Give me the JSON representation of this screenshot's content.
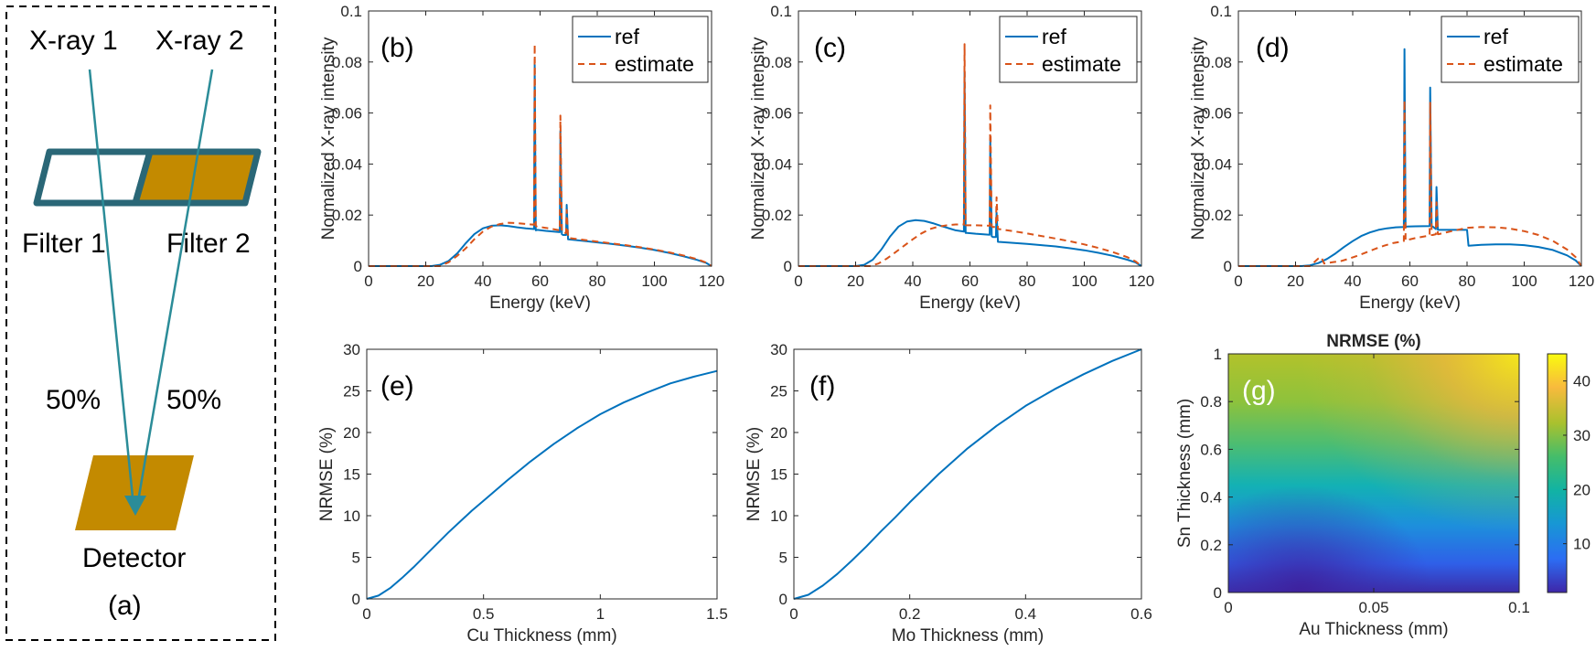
{
  "diagram": {
    "xray1_label": "X-ray 1",
    "xray2_label": "X-ray 2",
    "filter1_label": "Filter 1",
    "filter2_label": "Filter 2",
    "pct1_label": "50%",
    "pct2_label": "50%",
    "detector_label": "Detector",
    "panel_label": "(a)",
    "colors": {
      "beam": "#2b8c98",
      "filter_border": "#2a6777",
      "gold": "#c38a00"
    }
  },
  "colors": {
    "ref": "#0072BD",
    "estimate": "#D95319"
  },
  "chart_data": [
    {
      "id": "b",
      "type": "line",
      "panel_label": "(b)",
      "xlabel": "Energy (keV)",
      "ylabel": "Normalized X-ray intensity",
      "xlim": [
        0,
        120
      ],
      "ylim": [
        0,
        0.1
      ],
      "xticks": [
        "0",
        "20",
        "40",
        "60",
        "80",
        "100",
        "120"
      ],
      "yticks": [
        "0",
        "0.02",
        "0.04",
        "0.06",
        "0.08",
        "0.1"
      ],
      "legend": [
        "ref",
        "estimate"
      ],
      "legend_position": "top-right",
      "series": [
        {
          "name": "ref",
          "style": "solid",
          "x": [
            0,
            22,
            25,
            28,
            31,
            34,
            37,
            40,
            43,
            46,
            49,
            52,
            55,
            57.9,
            58.1,
            58.5,
            59,
            62,
            66.9,
            67.1,
            67.6,
            68,
            69.1,
            69.3,
            69.8,
            70,
            75,
            80,
            85,
            90,
            95,
            100,
            105,
            110,
            115,
            118,
            120
          ],
          "y": [
            0,
            0,
            0.0005,
            0.002,
            0.005,
            0.009,
            0.0125,
            0.0148,
            0.0158,
            0.016,
            0.0157,
            0.0152,
            0.0148,
            0.0145,
            0.079,
            0.014,
            0.0142,
            0.0138,
            0.0133,
            0.053,
            0.0125,
            0.0122,
            0.0122,
            0.024,
            0.0105,
            0.0105,
            0.0099,
            0.0093,
            0.0087,
            0.008,
            0.0072,
            0.0063,
            0.0052,
            0.0039,
            0.0024,
            0.0013,
            0
          ]
        },
        {
          "name": "estimate",
          "style": "dashed",
          "x": [
            0,
            25,
            28,
            31,
            34,
            37,
            40,
            43,
            46,
            49,
            52,
            55,
            57.9,
            58.1,
            58.5,
            59,
            62,
            66.9,
            67.1,
            67.6,
            68,
            69.1,
            69.3,
            69.8,
            70,
            75,
            80,
            85,
            90,
            95,
            100,
            105,
            110,
            115,
            118,
            120
          ],
          "y": [
            0,
            0,
            0.0015,
            0.004,
            0.007,
            0.0105,
            0.0135,
            0.0155,
            0.0165,
            0.017,
            0.0168,
            0.0165,
            0.0162,
            0.087,
            0.0157,
            0.0155,
            0.015,
            0.014,
            0.059,
            0.0133,
            0.013,
            0.013,
            0.022,
            0.011,
            0.011,
            0.0103,
            0.0096,
            0.0089,
            0.0082,
            0.0074,
            0.0065,
            0.0054,
            0.0042,
            0.0027,
            0.0014,
            0
          ]
        }
      ]
    },
    {
      "id": "c",
      "type": "line",
      "panel_label": "(c)",
      "xlabel": "Energy (keV)",
      "ylabel": "Normalized X-ray intensity",
      "xlim": [
        0,
        120
      ],
      "ylim": [
        0,
        0.1
      ],
      "xticks": [
        "0",
        "20",
        "40",
        "60",
        "80",
        "100",
        "120"
      ],
      "yticks": [
        "0",
        "0.02",
        "0.04",
        "0.06",
        "0.08",
        "0.1"
      ],
      "legend": [
        "ref",
        "estimate"
      ],
      "legend_position": "top-right",
      "series": [
        {
          "name": "ref",
          "style": "solid",
          "x": [
            0,
            20,
            23,
            26,
            29,
            32,
            35,
            38,
            41,
            44,
            47,
            50,
            53,
            55,
            57.9,
            58.1,
            58.5,
            59,
            62,
            66.9,
            67.1,
            67.6,
            68,
            69.1,
            69.3,
            69.8,
            70,
            75,
            80,
            85,
            90,
            95,
            100,
            105,
            110,
            115,
            118,
            120
          ],
          "y": [
            0,
            0,
            0.0005,
            0.0025,
            0.0065,
            0.0115,
            0.0155,
            0.0175,
            0.018,
            0.0177,
            0.0168,
            0.0157,
            0.0147,
            0.014,
            0.0135,
            0.076,
            0.013,
            0.013,
            0.0127,
            0.0123,
            0.05,
            0.0117,
            0.0114,
            0.0114,
            0.021,
            0.0095,
            0.0095,
            0.0091,
            0.0087,
            0.0082,
            0.0077,
            0.007,
            0.0062,
            0.0052,
            0.004,
            0.0025,
            0.0014,
            0
          ]
        },
        {
          "name": "estimate",
          "style": "dashed",
          "x": [
            0,
            25,
            28,
            31,
            34,
            37,
            40,
            43,
            46,
            49,
            52,
            55,
            57.9,
            58.1,
            58.5,
            59,
            62,
            66.9,
            67.1,
            67.6,
            68,
            69.1,
            69.3,
            69.8,
            70,
            75,
            80,
            85,
            90,
            95,
            100,
            105,
            110,
            115,
            118,
            120
          ],
          "y": [
            0,
            0,
            0.001,
            0.003,
            0.0055,
            0.008,
            0.0105,
            0.0128,
            0.0145,
            0.0155,
            0.016,
            0.0163,
            0.0163,
            0.087,
            0.016,
            0.016,
            0.016,
            0.0158,
            0.063,
            0.0155,
            0.0153,
            0.0153,
            0.027,
            0.0145,
            0.0145,
            0.0137,
            0.0128,
            0.0118,
            0.0108,
            0.0097,
            0.0085,
            0.0071,
            0.0055,
            0.0035,
            0.0018,
            0
          ]
        }
      ]
    },
    {
      "id": "d",
      "type": "line",
      "panel_label": "(d)",
      "xlabel": "Energy (keV)",
      "ylabel": "Normalized X-ray intensity",
      "xlim": [
        0,
        120
      ],
      "ylim": [
        0,
        0.1
      ],
      "xticks": [
        "0",
        "20",
        "40",
        "60",
        "80",
        "100",
        "120"
      ],
      "yticks": [
        "0",
        "0.02",
        "0.04",
        "0.06",
        "0.08",
        "0.1"
      ],
      "legend": [
        "ref",
        "estimate"
      ],
      "legend_position": "top-right",
      "series": [
        {
          "name": "ref",
          "style": "solid",
          "x": [
            0,
            22,
            25,
            28,
            31,
            34,
            37,
            40,
            43,
            46,
            49,
            52,
            55,
            57.9,
            58.1,
            58.5,
            59,
            62,
            66.9,
            67.1,
            67.6,
            68,
            69.1,
            69.3,
            69.8,
            70,
            75,
            80,
            80.5,
            85,
            90,
            95,
            100,
            105,
            110,
            115,
            118,
            120
          ],
          "y": [
            0,
            0,
            0.0003,
            0.0012,
            0.0028,
            0.005,
            0.0075,
            0.0098,
            0.0118,
            0.0132,
            0.0142,
            0.0148,
            0.0152,
            0.0153,
            0.085,
            0.0153,
            0.0155,
            0.0156,
            0.0157,
            0.07,
            0.0155,
            0.0155,
            0.0145,
            0.031,
            0.0142,
            0.0142,
            0.0142,
            0.0142,
            0.008,
            0.0083,
            0.0085,
            0.0085,
            0.0082,
            0.0075,
            0.0063,
            0.0042,
            0.0022,
            0
          ]
        },
        {
          "name": "estimate",
          "style": "dashed",
          "x": [
            0,
            25,
            27,
            28,
            29,
            30,
            33,
            36,
            39,
            42,
            45,
            48,
            51,
            54,
            57.9,
            58.1,
            58.5,
            59,
            62,
            66.9,
            67.1,
            67.6,
            68,
            69.1,
            69.3,
            69.8,
            70,
            75,
            80,
            85,
            90,
            95,
            100,
            105,
            110,
            115,
            118,
            120
          ],
          "y": [
            0,
            0,
            0.002,
            0.003,
            0.0035,
            0.001,
            0.0015,
            0.002,
            0.003,
            0.0042,
            0.0055,
            0.0068,
            0.008,
            0.009,
            0.0098,
            0.065,
            0.01,
            0.0102,
            0.011,
            0.012,
            0.064,
            0.0122,
            0.0122,
            0.0125,
            0.025,
            0.0125,
            0.0125,
            0.0138,
            0.015,
            0.0153,
            0.0152,
            0.0147,
            0.0137,
            0.0122,
            0.0099,
            0.0065,
            0.0035,
            0
          ]
        }
      ]
    },
    {
      "id": "e",
      "type": "line",
      "panel_label": "(e)",
      "xlabel": "Cu Thickness (mm)",
      "ylabel": "NRMSE (%)",
      "xlim": [
        0,
        1.5
      ],
      "ylim": [
        0,
        30
      ],
      "xticks": [
        "0",
        "0.5",
        "1",
        "1.5"
      ],
      "yticks": [
        "0",
        "5",
        "10",
        "15",
        "20",
        "25",
        "30"
      ],
      "series": [
        {
          "name": "NRMSE",
          "style": "solid",
          "x": [
            0,
            0.05,
            0.1,
            0.15,
            0.2,
            0.25,
            0.3,
            0.35,
            0.4,
            0.45,
            0.5,
            0.6,
            0.7,
            0.8,
            0.9,
            1.0,
            1.1,
            1.2,
            1.3,
            1.4,
            1.5
          ],
          "y": [
            0,
            0.4,
            1.3,
            2.5,
            3.8,
            5.2,
            6.6,
            8.0,
            9.3,
            10.6,
            11.8,
            14.2,
            16.5,
            18.6,
            20.5,
            22.2,
            23.6,
            24.8,
            25.9,
            26.7,
            27.4
          ]
        }
      ]
    },
    {
      "id": "f",
      "type": "line",
      "panel_label": "(f)",
      "xlabel": "Mo Thickness (mm)",
      "ylabel": "NRMSE (%)",
      "xlim": [
        0,
        0.6
      ],
      "ylim": [
        0,
        30
      ],
      "xticks": [
        "0",
        "0.2",
        "0.4",
        "0.6"
      ],
      "yticks": [
        "0",
        "5",
        "10",
        "15",
        "20",
        "25",
        "30"
      ],
      "series": [
        {
          "name": "NRMSE",
          "style": "solid",
          "x": [
            0,
            0.025,
            0.05,
            0.075,
            0.1,
            0.125,
            0.15,
            0.175,
            0.2,
            0.25,
            0.3,
            0.35,
            0.4,
            0.45,
            0.5,
            0.55,
            0.6
          ],
          "y": [
            0,
            0.5,
            1.6,
            3.0,
            4.6,
            6.3,
            8.1,
            9.8,
            11.6,
            15.0,
            18.1,
            20.8,
            23.2,
            25.2,
            27.0,
            28.6,
            30.0
          ]
        }
      ]
    },
    {
      "id": "g",
      "type": "heatmap",
      "panel_label": "(g)",
      "title": "NRMSE (%)",
      "xlabel": "Au Thickness (mm)",
      "ylabel": "Sn Thickness (mm)",
      "xlim": [
        0,
        0.1
      ],
      "ylim": [
        0,
        1
      ],
      "xticks": [
        "0",
        "0.05",
        "0.1"
      ],
      "yticks": [
        "0",
        "0.2",
        "0.4",
        "0.6",
        "0.8",
        "1"
      ],
      "colorbar": {
        "clim": [
          1,
          45
        ],
        "ticks": [
          "10",
          "20",
          "30",
          "40"
        ]
      }
    }
  ]
}
